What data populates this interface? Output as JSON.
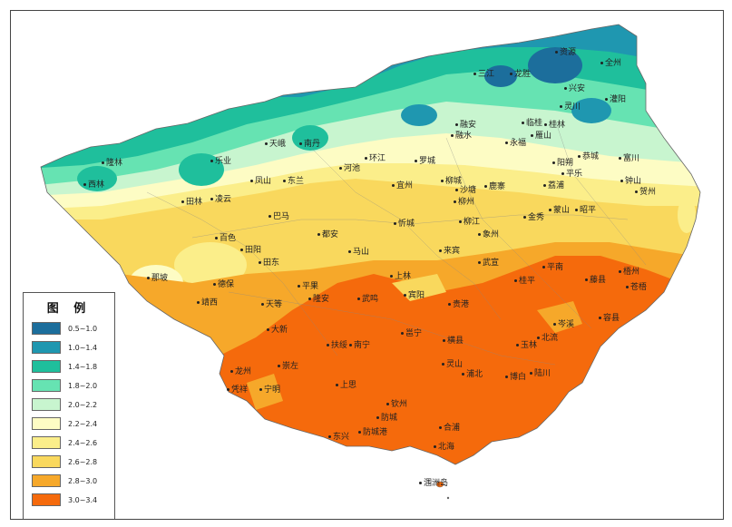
{
  "legend": {
    "title": "图 例",
    "items": [
      {
        "label": "0.5~1.0",
        "color": "#1c6e9c"
      },
      {
        "label": "1.0~1.4",
        "color": "#1f97b0"
      },
      {
        "label": "1.4~1.8",
        "color": "#1fbf9c"
      },
      {
        "label": "1.8~2.0",
        "color": "#66e3b2"
      },
      {
        "label": "2.0~2.2",
        "color": "#c8f5cf"
      },
      {
        "label": "2.2~2.4",
        "color": "#fdfcc4"
      },
      {
        "label": "2.4~2.6",
        "color": "#fbee8a"
      },
      {
        "label": "2.6~2.8",
        "color": "#f9d85d"
      },
      {
        "label": "2.8~3.0",
        "color": "#f6a82a"
      },
      {
        "label": "3.0~3.4",
        "color": "#f56a0c"
      }
    ]
  },
  "cities": [
    {
      "name": "资源"
    },
    {
      "name": "全州"
    },
    {
      "name": "三江"
    },
    {
      "name": "龙胜"
    },
    {
      "name": "兴安"
    },
    {
      "name": "灌阳"
    },
    {
      "name": "灵川"
    },
    {
      "name": "融安"
    },
    {
      "name": "临桂"
    },
    {
      "name": "桂林"
    },
    {
      "name": "融水"
    },
    {
      "name": "永福"
    },
    {
      "name": "雁山"
    },
    {
      "name": "天峨"
    },
    {
      "name": "南丹"
    },
    {
      "name": "环江"
    },
    {
      "name": "罗城"
    },
    {
      "name": "恭城"
    },
    {
      "name": "富川"
    },
    {
      "name": "隆林"
    },
    {
      "name": "乐业"
    },
    {
      "name": "河池"
    },
    {
      "name": "阳朔"
    },
    {
      "name": "平乐"
    },
    {
      "name": "西林"
    },
    {
      "name": "凤山"
    },
    {
      "name": "东兰"
    },
    {
      "name": "宜州"
    },
    {
      "name": "柳城"
    },
    {
      "name": "钟山"
    },
    {
      "name": "沙塘"
    },
    {
      "name": "鹿寨"
    },
    {
      "name": "荔浦"
    },
    {
      "name": "贺州"
    },
    {
      "name": "田林"
    },
    {
      "name": "凌云"
    },
    {
      "name": "柳州"
    },
    {
      "name": "蒙山"
    },
    {
      "name": "昭平"
    },
    {
      "name": "巴马"
    },
    {
      "name": "忻城"
    },
    {
      "name": "柳江"
    },
    {
      "name": "金秀"
    },
    {
      "name": "都安"
    },
    {
      "name": "象州"
    },
    {
      "name": "百色"
    },
    {
      "name": "田阳"
    },
    {
      "name": "马山"
    },
    {
      "name": "来宾"
    },
    {
      "name": "田东"
    },
    {
      "name": "武宣"
    },
    {
      "name": "平南"
    },
    {
      "name": "梧州"
    },
    {
      "name": "那坡"
    },
    {
      "name": "上林"
    },
    {
      "name": "桂平"
    },
    {
      "name": "藤县"
    },
    {
      "name": "德保"
    },
    {
      "name": "平果"
    },
    {
      "name": "苍梧"
    },
    {
      "name": "隆安"
    },
    {
      "name": "武鸣"
    },
    {
      "name": "宾阳"
    },
    {
      "name": "贵港"
    },
    {
      "name": "靖西"
    },
    {
      "name": "天等"
    },
    {
      "name": "岑溪"
    },
    {
      "name": "大新"
    },
    {
      "name": "邕宁"
    },
    {
      "name": "横县"
    },
    {
      "name": "容县"
    },
    {
      "name": "北流"
    },
    {
      "name": "扶绥"
    },
    {
      "name": "南宁"
    },
    {
      "name": "玉林"
    },
    {
      "name": "龙州"
    },
    {
      "name": "崇左"
    },
    {
      "name": "灵山"
    },
    {
      "name": "凭祥"
    },
    {
      "name": "宁明"
    },
    {
      "name": "浦北"
    },
    {
      "name": "博白"
    },
    {
      "name": "陆川"
    },
    {
      "name": "上思"
    },
    {
      "name": "钦州"
    },
    {
      "name": "防城"
    },
    {
      "name": "合浦"
    },
    {
      "name": "东兴"
    },
    {
      "name": "防城港"
    },
    {
      "name": "北海"
    },
    {
      "name": "涠洲岛"
    }
  ]
}
